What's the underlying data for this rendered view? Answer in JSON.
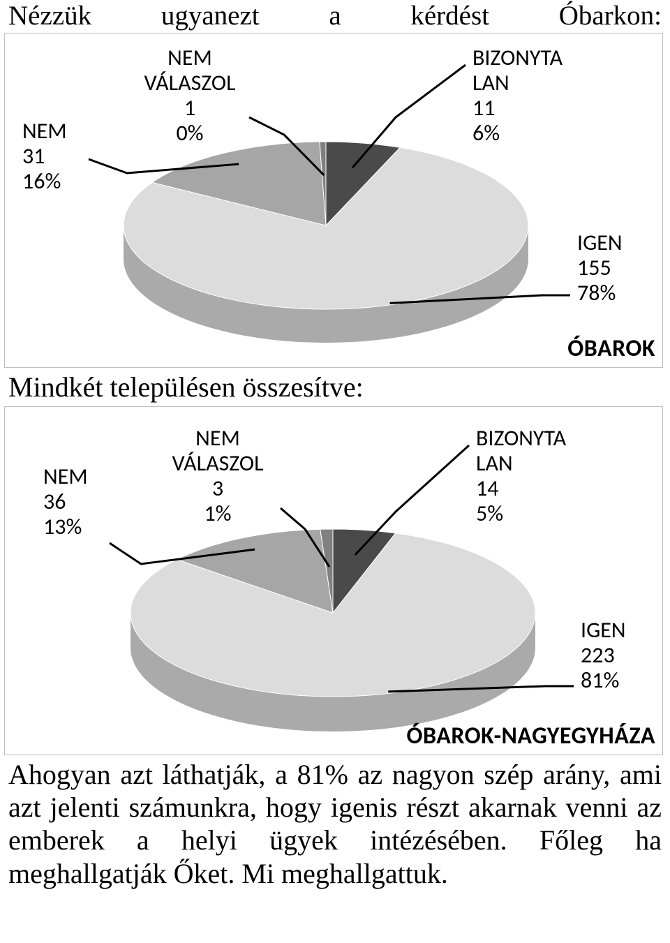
{
  "heading": {
    "w1": "Nézzük",
    "w2": "ugyanezt",
    "w3": "a",
    "w4": "kérdést",
    "w5": "Óbarkon:"
  },
  "midline": "Mindkét településen összesítve:",
  "paragraph": "Ahogyan azt láthatják, a 81% az nagyon szép arány, ami azt jelenti számunkra, hogy igenis részt akarnak venni az emberek a helyi ügyek intézésében. Főleg ha meghallgatják Őket. Mi meghallgattuk.",
  "chart1": {
    "type": "pie-3d",
    "title": "ÓBAROK",
    "background_color": "#ffffff",
    "border_color": "#bfbfbf",
    "label_fontsize": 32,
    "title_fontsize": 34,
    "slices": [
      {
        "name": "BIZONYTALAN",
        "label1": "BIZONYTA",
        "label2": "LAN",
        "count": 11,
        "percent": "6%",
        "value": 6,
        "color": "#4a4a4a"
      },
      {
        "name": "IGEN",
        "label1": "IGEN",
        "label2": "",
        "count": 155,
        "percent": "78%",
        "value": 78,
        "color": "#dcdcdc"
      },
      {
        "name": "NEM",
        "label1": "NEM",
        "label2": "",
        "count": 31,
        "percent": "16%",
        "value": 16,
        "color": "#a6a6a6"
      },
      {
        "name": "NEM VÁLASZOL",
        "label1": "NEM",
        "label2": "VÁLASZOL",
        "count": 1,
        "percent": "0%",
        "value": 0.5,
        "color": "#808080"
      }
    ],
    "side_color": "#808080",
    "side_dark": "#6b6b6b"
  },
  "chart2": {
    "type": "pie-3d",
    "title": "ÓBAROK-NAGYEGYHÁZA",
    "background_color": "#ffffff",
    "border_color": "#bfbfbf",
    "label_fontsize": 32,
    "title_fontsize": 34,
    "slices": [
      {
        "name": "BIZONYTALAN",
        "label1": "BIZONYTA",
        "label2": "LAN",
        "count": 14,
        "percent": "5%",
        "value": 5,
        "color": "#4a4a4a"
      },
      {
        "name": "IGEN",
        "label1": "IGEN",
        "label2": "",
        "count": 223,
        "percent": "81%",
        "value": 81,
        "color": "#dcdcdc"
      },
      {
        "name": "NEM",
        "label1": "NEM",
        "label2": "",
        "count": 36,
        "percent": "13%",
        "value": 13,
        "color": "#a6a6a6"
      },
      {
        "name": "NEM VÁLASZOL",
        "label1": "NEM",
        "label2": "VÁLASZOL",
        "count": 3,
        "percent": "1%",
        "value": 1,
        "color": "#808080"
      }
    ],
    "side_color": "#808080",
    "side_dark": "#6b6b6b"
  }
}
